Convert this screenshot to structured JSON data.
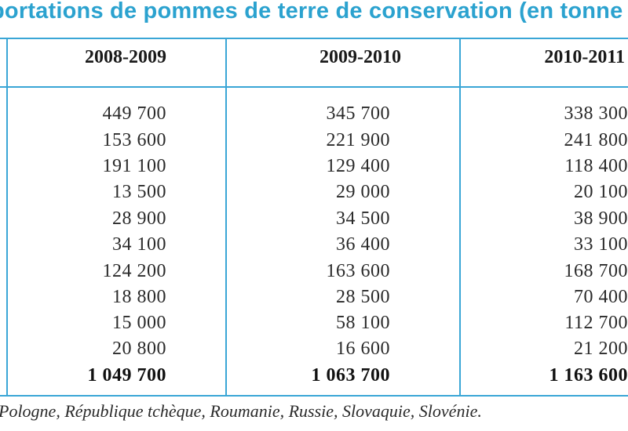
{
  "title": "portations de pommes de terre de conservation (en tonne",
  "columns": [
    "2008-2009",
    "2009-2010",
    "2010-2011"
  ],
  "rows": [
    [
      "449 700",
      "345 700",
      "338 300"
    ],
    [
      "153 600",
      "221 900",
      "241 800"
    ],
    [
      "191 100",
      "129 400",
      "118 400"
    ],
    [
      "13 500",
      "29 000",
      "20 100"
    ],
    [
      "28 900",
      "34 500",
      "38 900"
    ],
    [
      "34 100",
      "36 400",
      "33 100"
    ],
    [
      "124 200",
      "163 600",
      "168 700"
    ],
    [
      "18 800",
      "28 500",
      "70 400"
    ],
    [
      "15 000",
      "58 100",
      "112 700"
    ],
    [
      "20 800",
      "16 600",
      "21 200"
    ]
  ],
  "totals": [
    "1 049 700",
    "1 063 700",
    "1 163 600"
  ],
  "footnote": "Pologne, République tchèque, Roumanie, Russie, Slovaquie, Slovénie.",
  "colors": {
    "title": "#2ba2cf",
    "rule": "#3aa6d6",
    "text": "#2a2a2a"
  }
}
